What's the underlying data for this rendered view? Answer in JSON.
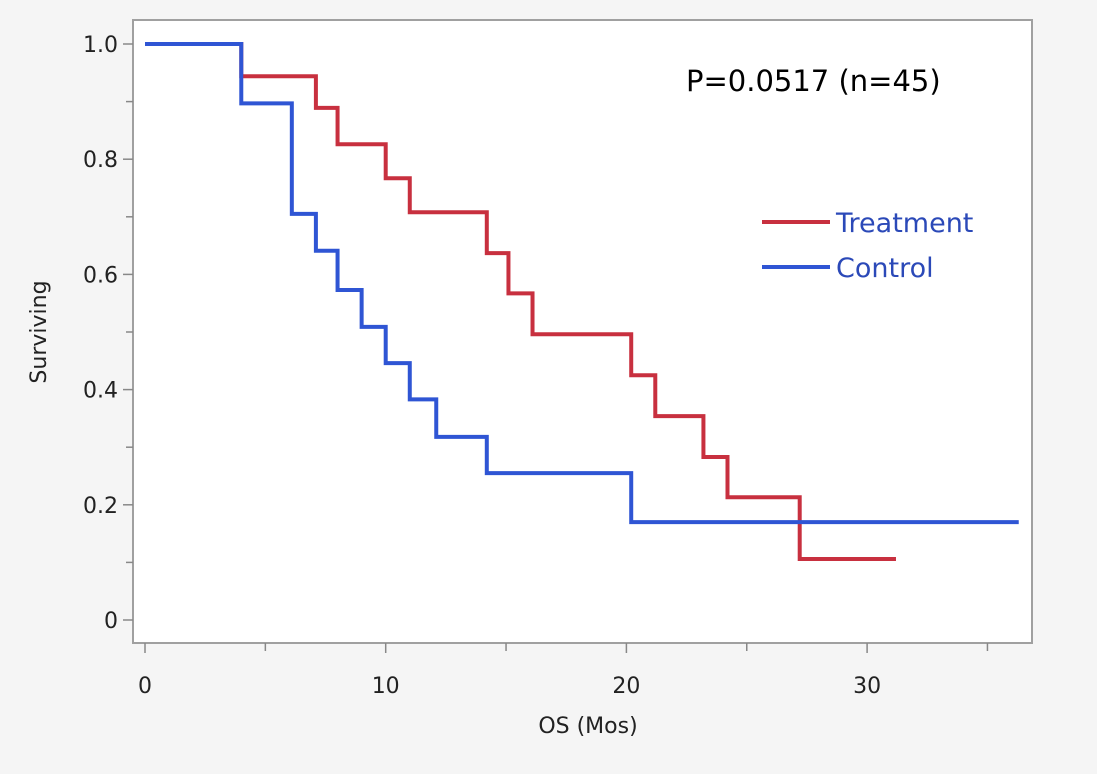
{
  "chart_data": {
    "type": "line",
    "subtype": "kaplan-meier-step",
    "xlabel": "OS (Mos)",
    "ylabel": "Surviving",
    "xlim": [
      0,
      37
    ],
    "ylim": [
      0,
      1.04
    ],
    "x_ticks": [
      0,
      10,
      20,
      30
    ],
    "x_minor_ticks": [
      5,
      15,
      25,
      35
    ],
    "y_ticks": [
      0,
      0.2,
      0.4,
      0.6,
      0.8,
      1.0
    ],
    "y_tick_labels": [
      "0",
      "0.2",
      "0.4",
      "0.6",
      "0.8",
      "1.0"
    ],
    "y_minor_ticks": [
      0.1,
      0.3,
      0.5,
      0.7,
      0.9
    ],
    "grid": false,
    "legend_position": "right",
    "annotation": "P=0.0517 (n=45)",
    "series": [
      {
        "name": "Treatment",
        "color": "#c8303f",
        "x": [
          0,
          4,
          7.1,
          8,
          10,
          11,
          14.2,
          15.1,
          16.1,
          20.2,
          21.2,
          23.2,
          24.2,
          27.2,
          31.2
        ],
        "y": [
          1.0,
          0.944,
          0.889,
          0.826,
          0.767,
          0.708,
          0.637,
          0.567,
          0.496,
          0.425,
          0.354,
          0.283,
          0.213,
          0.106,
          0.106
        ]
      },
      {
        "name": "Control",
        "color": "#2f55d4",
        "x": [
          0,
          4,
          6.1,
          7.1,
          8,
          9,
          10,
          11,
          12.1,
          14.2,
          20.2,
          36.3
        ],
        "y": [
          1.0,
          0.897,
          0.705,
          0.641,
          0.573,
          0.509,
          0.446,
          0.383,
          0.318,
          0.255,
          0.17,
          0.17
        ]
      }
    ]
  }
}
